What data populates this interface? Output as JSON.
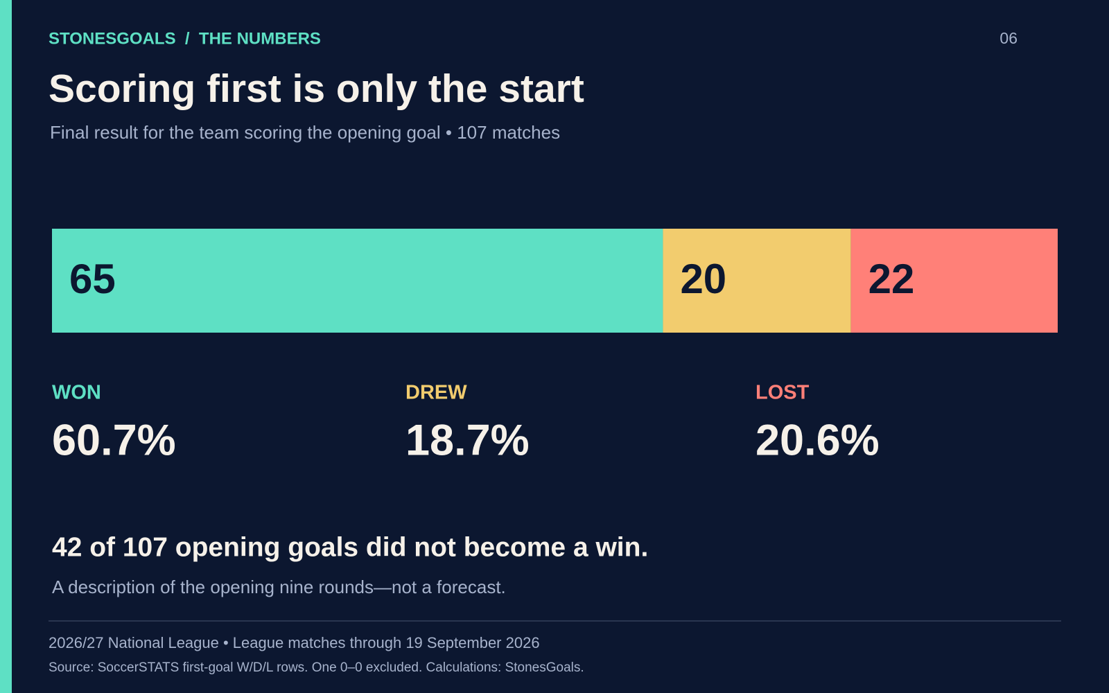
{
  "header": {
    "kicker": "STONESGOALS  /  THE NUMBERS",
    "page": "06"
  },
  "chart_data": {
    "type": "stacked-bar",
    "title": "Scoring first is only the start",
    "subtitle": "Final result for the team scoring the opening goal • 107 matches",
    "xlim": [
      0,
      107
    ],
    "series": [
      {
        "name": "WON",
        "color": "#5ee0c4",
        "values": [
          65
        ],
        "share": 60.7,
        "share_label": "60.7%"
      },
      {
        "name": "DREW",
        "color": "#f2cc6e",
        "values": [
          20
        ],
        "share": 18.7,
        "share_label": "18.7%"
      },
      {
        "name": "LOST",
        "color": "#ff8078",
        "values": [
          22
        ],
        "share": 20.6,
        "share_label": "20.6%"
      }
    ]
  },
  "takeaway": {
    "headline": "42 of 107 opening goals did not become a win.",
    "note": "A description of the opening nine rounds—not a forecast."
  },
  "footer": {
    "line1": "2026/27 National League • League matches through 19 September 2026",
    "line2": "Source: SoccerSTATS first-goal W/D/L rows. One 0–0 excluded. Calculations: StonesGoals."
  }
}
